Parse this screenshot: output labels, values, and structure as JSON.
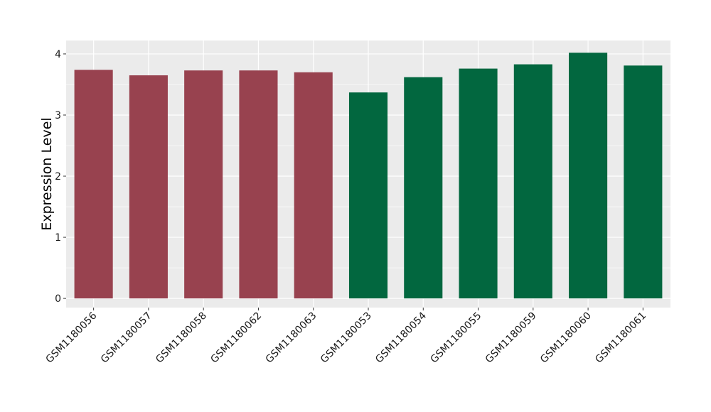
{
  "chart_data": {
    "type": "bar",
    "title": "",
    "xlabel": "",
    "ylabel": "Expression Level",
    "categories": [
      "GSM1180056",
      "GSM1180057",
      "GSM1180058",
      "GSM1180062",
      "GSM1180063",
      "GSM1180053",
      "GSM1180054",
      "GSM1180055",
      "GSM1180059",
      "GSM1180060",
      "GSM1180061"
    ],
    "values": [
      3.74,
      3.65,
      3.73,
      3.73,
      3.7,
      3.37,
      3.62,
      3.76,
      3.83,
      4.02,
      3.81
    ],
    "bar_colors": [
      "#98424f",
      "#98424f",
      "#98424f",
      "#98424f",
      "#98424f",
      "#02673f",
      "#02673f",
      "#02673f",
      "#02673f",
      "#02673f",
      "#02673f"
    ],
    "ylim": [
      -0.15,
      4.22
    ],
    "yticks": [
      0,
      1,
      2,
      3,
      4
    ],
    "grid": true,
    "legend": "none",
    "panel_background": "#ebebeb",
    "grid_color": "#ffffff"
  }
}
